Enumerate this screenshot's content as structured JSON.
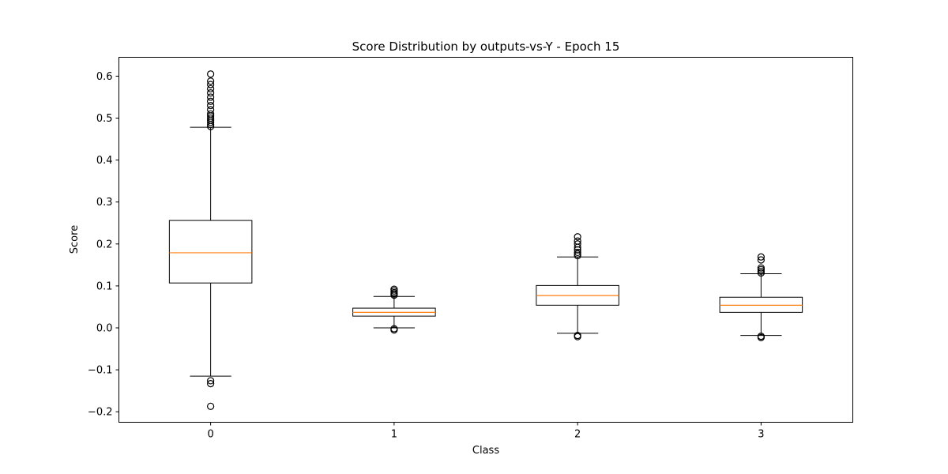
{
  "chart_data": {
    "type": "box",
    "title": "Score Distribution by outputs-vs-Y - Epoch 15",
    "xlabel": "Class",
    "ylabel": "Score",
    "ylim": [
      -0.225,
      0.645
    ],
    "yticks": [
      -0.2,
      -0.1,
      0.0,
      0.1,
      0.2,
      0.3,
      0.4,
      0.5,
      0.6
    ],
    "ytick_labels": [
      "−0.2",
      "−0.1",
      "0.0",
      "0.1",
      "0.2",
      "0.3",
      "0.4",
      "0.5",
      "0.6"
    ],
    "categories": [
      "0",
      "1",
      "2",
      "3"
    ],
    "boxes": [
      {
        "category": "0",
        "whisker_low": -0.115,
        "q1": 0.107,
        "median": 0.179,
        "q3": 0.256,
        "whisker_high": 0.478,
        "outliers": [
          0.48,
          0.485,
          0.49,
          0.495,
          0.5,
          0.505,
          0.51,
          0.52,
          0.53,
          0.54,
          0.55,
          0.56,
          0.57,
          0.58,
          0.588,
          0.605,
          -0.126,
          -0.133,
          -0.187
        ]
      },
      {
        "category": "1",
        "whisker_low": 0.0,
        "q1": 0.028,
        "median": 0.037,
        "q3": 0.047,
        "whisker_high": 0.075,
        "outliers": [
          0.078,
          0.081,
          0.084,
          0.088,
          0.092,
          -0.002,
          -0.005
        ]
      },
      {
        "category": "2",
        "whisker_low": -0.013,
        "q1": 0.054,
        "median": 0.077,
        "q3": 0.101,
        "whisker_high": 0.169,
        "outliers": [
          0.172,
          0.176,
          0.18,
          0.186,
          0.192,
          0.2,
          0.207,
          0.217,
          -0.018,
          -0.021
        ]
      },
      {
        "category": "3",
        "whisker_low": -0.018,
        "q1": 0.037,
        "median": 0.054,
        "q3": 0.073,
        "whisker_high": 0.129,
        "outliers": [
          0.131,
          0.135,
          0.139,
          0.143,
          0.162,
          0.169,
          -0.02,
          -0.023
        ]
      }
    ],
    "colors": {
      "box": "#000000",
      "median": "#ff7f0e"
    },
    "grid": false,
    "legend": "none"
  }
}
